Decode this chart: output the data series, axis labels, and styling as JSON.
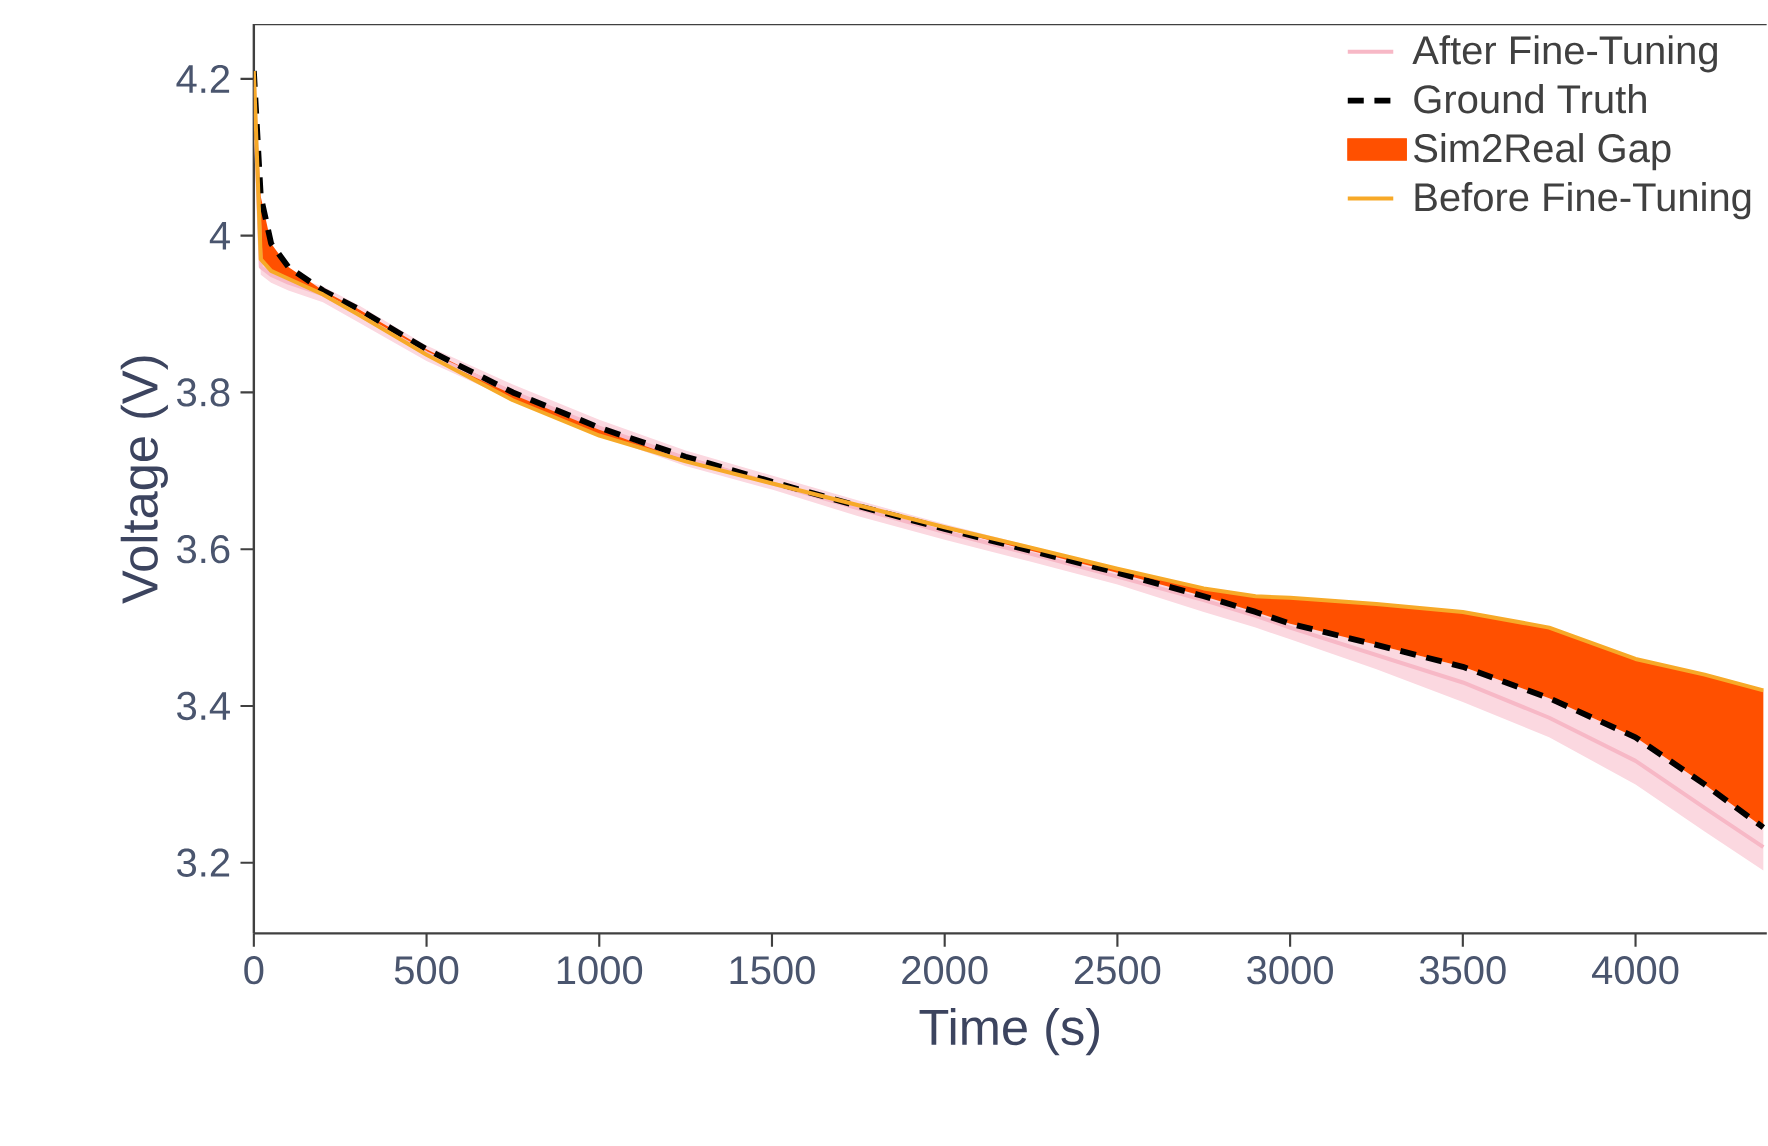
{
  "chart_data": {
    "type": "line",
    "xlabel": "Time (s)",
    "ylabel": "Voltage (V)",
    "x": [
      0,
      20,
      50,
      100,
      200,
      300,
      500,
      750,
      1000,
      1250,
      1500,
      1750,
      2000,
      2250,
      2500,
      2750,
      2900,
      3000,
      3250,
      3500,
      3750,
      4000,
      4200,
      4370
    ],
    "series": [
      {
        "name": "After Fine-Tuning",
        "type": "line",
        "color": "#f7b8c6",
        "values": [
          4.2,
          3.96,
          3.95,
          3.94,
          3.925,
          3.9,
          3.85,
          3.8,
          3.755,
          3.716,
          3.684,
          3.652,
          3.622,
          3.594,
          3.565,
          3.535,
          3.515,
          3.5,
          3.465,
          3.43,
          3.385,
          3.33,
          3.27,
          3.22
        ],
        "lower": [
          4.19,
          3.95,
          3.94,
          3.93,
          3.915,
          3.89,
          3.84,
          3.79,
          3.745,
          3.706,
          3.676,
          3.642,
          3.612,
          3.584,
          3.555,
          3.52,
          3.5,
          3.485,
          3.447,
          3.405,
          3.36,
          3.3,
          3.24,
          3.19
        ],
        "upper": [
          4.21,
          3.97,
          3.96,
          3.95,
          3.935,
          3.912,
          3.86,
          3.81,
          3.765,
          3.726,
          3.694,
          3.662,
          3.632,
          3.604,
          3.575,
          3.545,
          3.525,
          3.51,
          3.478,
          3.45,
          3.41,
          3.36,
          3.3,
          3.25
        ]
      },
      {
        "name": "Ground Truth",
        "type": "line",
        "color": "#000000",
        "line_style": "dashed",
        "values": [
          4.21,
          4.05,
          3.99,
          3.96,
          3.93,
          3.907,
          3.855,
          3.8,
          3.755,
          3.718,
          3.686,
          3.655,
          3.626,
          3.598,
          3.57,
          3.54,
          3.52,
          3.505,
          3.478,
          3.45,
          3.41,
          3.36,
          3.3,
          3.245
        ]
      },
      {
        "name": "Sim2Real Gap",
        "type": "area",
        "color": "#ff5000",
        "values": [
          null,
          null,
          null,
          null,
          null,
          null,
          null,
          null,
          null,
          null,
          null,
          null,
          null,
          null,
          null,
          null,
          null,
          null,
          null,
          null,
          null,
          null,
          null,
          null
        ],
        "lower": [
          4.21,
          4.05,
          3.99,
          3.96,
          3.93,
          3.907,
          3.855,
          3.8,
          3.755,
          3.718,
          3.686,
          3.655,
          3.626,
          3.598,
          3.57,
          3.54,
          3.52,
          3.505,
          3.478,
          3.45,
          3.41,
          3.36,
          3.3,
          3.245
        ],
        "upper": [
          4.21,
          3.97,
          3.955,
          3.945,
          3.925,
          3.9,
          3.848,
          3.79,
          3.745,
          3.712,
          3.684,
          3.656,
          3.628,
          3.602,
          3.575,
          3.55,
          3.54,
          3.538,
          3.53,
          3.52,
          3.5,
          3.46,
          3.44,
          3.42
        ]
      },
      {
        "name": "Before Fine-Tuning",
        "type": "line",
        "color": "#f7a928",
        "values": [
          4.21,
          3.97,
          3.955,
          3.945,
          3.925,
          3.9,
          3.848,
          3.79,
          3.745,
          3.712,
          3.684,
          3.656,
          3.628,
          3.602,
          3.575,
          3.55,
          3.54,
          3.538,
          3.53,
          3.52,
          3.5,
          3.46,
          3.44,
          3.42
        ]
      }
    ],
    "xlim": [
      0,
      4380
    ],
    "ylim": [
      3.11,
      4.27
    ],
    "xticks": [
      0,
      500,
      1000,
      1500,
      2000,
      2500,
      3000,
      3500,
      4000
    ],
    "yticks": [
      3.2,
      3.4,
      3.6,
      3.8,
      4,
      4.2
    ],
    "legend": "top right",
    "marker": "none",
    "grid": false
  }
}
